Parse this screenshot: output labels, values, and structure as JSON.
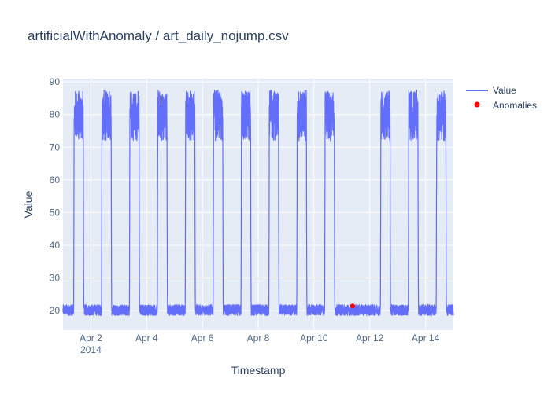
{
  "chart_data": {
    "type": "line",
    "title": "artificialWithAnomaly / art_daily_nojump.csv",
    "xlabel": "Timestamp",
    "ylabel": "Value",
    "x_range": [
      "2014-04-01T00:00:00",
      "2014-04-15T00:00:00"
    ],
    "x_ticks": [
      {
        "date": "2014-04-02",
        "label": "Apr 2",
        "sublabel": "2014"
      },
      {
        "date": "2014-04-04",
        "label": "Apr 4",
        "sublabel": ""
      },
      {
        "date": "2014-04-06",
        "label": "Apr 6",
        "sublabel": ""
      },
      {
        "date": "2014-04-08",
        "label": "Apr 8",
        "sublabel": ""
      },
      {
        "date": "2014-04-10",
        "label": "Apr 10",
        "sublabel": ""
      },
      {
        "date": "2014-04-12",
        "label": "Apr 12",
        "sublabel": ""
      },
      {
        "date": "2014-04-14",
        "label": "Apr 14",
        "sublabel": ""
      }
    ],
    "ylim": [
      14,
      91
    ],
    "y_ticks": [
      20,
      30,
      40,
      50,
      60,
      70,
      80,
      90
    ],
    "grid": true,
    "legend_position": "top-right",
    "series": [
      {
        "name": "Value",
        "type": "line",
        "color": "#636efa",
        "pattern": {
          "baseline_min": 18.5,
          "baseline_max": 21.8,
          "peak_min": 72,
          "peak_max": 87.5,
          "peak_start_hour": 9.2,
          "peak_end_hour": 17.5,
          "sample_minutes": 5,
          "flat_day": "2014-04-11"
        }
      },
      {
        "name": "Anomalies",
        "type": "scatter",
        "color": "#ff0000",
        "points": [
          {
            "x": "2014-04-11T09:15:00",
            "y": 21.4
          }
        ]
      }
    ]
  },
  "colors": {
    "plot_background": "#e5ecf6",
    "grid": "#ffffff",
    "text": "#2a3f5f",
    "tick_text": "#506784"
  }
}
